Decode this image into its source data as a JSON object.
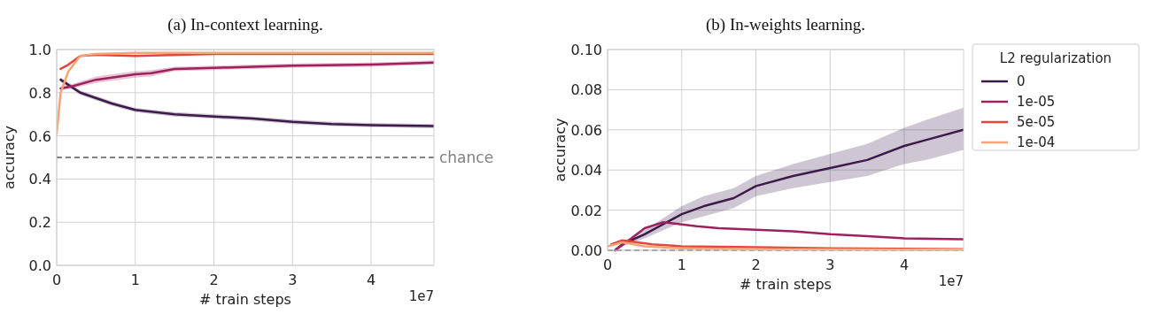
{
  "chart_data": [
    {
      "type": "line",
      "title": "(a) In-context learning.",
      "xlabel": "# train steps",
      "ylabel": "accuracy",
      "annotations": [
        "1e7"
      ],
      "xlim": [
        0,
        4.8
      ],
      "ylim": [
        0,
        1
      ],
      "xticks": [
        0,
        1,
        2,
        3,
        4
      ],
      "yticks": [
        {
          "value": 0,
          "label": "0.0"
        },
        {
          "value": 0.2,
          "label": "0.2"
        },
        {
          "value": 0.4,
          "label": "0.4"
        },
        {
          "value": 0.6,
          "label": "0.6"
        },
        {
          "value": 0.8,
          "label": "0.8"
        },
        {
          "value": 1,
          "label": "1.0"
        }
      ],
      "grid": true,
      "legend": false,
      "line_style": "solid",
      "marker": "none",
      "ref_lines": [
        {
          "axis": "y",
          "value": 0.5,
          "label": "chance",
          "color": "#808080",
          "line_style": "dashed"
        }
      ],
      "series": [
        {
          "color": "#3d1a4a",
          "x": [
            0.05,
            0.3,
            0.7,
            1,
            1.5,
            2,
            2.5,
            3,
            3.5,
            4,
            4.8
          ],
          "values": [
            0.86,
            0.8,
            0.75,
            0.72,
            0.7,
            0.69,
            0.68,
            0.665,
            0.655,
            0.65,
            0.645
          ],
          "lower": [
            0.85,
            0.79,
            0.74,
            0.71,
            0.69,
            0.68,
            0.67,
            0.655,
            0.645,
            0.64,
            0.635
          ],
          "upper": [
            0.87,
            0.81,
            0.76,
            0.73,
            0.71,
            0.7,
            0.69,
            0.675,
            0.665,
            0.66,
            0.655
          ]
        },
        {
          "color": "#a0205e",
          "x": [
            0.05,
            0.2,
            0.5,
            0.7,
            1,
            1.2,
            1.5,
            2,
            2.5,
            3,
            4,
            4.8
          ],
          "values": [
            0.82,
            0.83,
            0.86,
            0.87,
            0.885,
            0.89,
            0.91,
            0.915,
            0.92,
            0.925,
            0.93,
            0.94
          ],
          "lower": [
            0.81,
            0.82,
            0.845,
            0.855,
            0.87,
            0.875,
            0.9,
            0.905,
            0.91,
            0.915,
            0.92,
            0.93
          ],
          "upper": [
            0.83,
            0.84,
            0.875,
            0.885,
            0.9,
            0.905,
            0.92,
            0.925,
            0.93,
            0.935,
            0.94,
            0.95
          ]
        },
        {
          "color": "#e3473c",
          "x": [
            0.05,
            0.15,
            0.3,
            0.5,
            1,
            2,
            3,
            4,
            4.8
          ],
          "values": [
            0.91,
            0.93,
            0.97,
            0.975,
            0.97,
            0.98,
            0.98,
            0.98,
            0.98
          ]
        },
        {
          "color": "#f5a475",
          "x": [
            0,
            0.05,
            0.15,
            0.3,
            0.5,
            1,
            2,
            3,
            4,
            4.8
          ],
          "values": [
            0.61,
            0.8,
            0.9,
            0.97,
            0.98,
            0.985,
            0.985,
            0.985,
            0.985,
            0.985
          ]
        }
      ]
    },
    {
      "type": "line",
      "title": "(b) In-weights learning.",
      "xlabel": "# train steps",
      "ylabel": "accuracy",
      "annotations": [
        "1e7"
      ],
      "xlim": [
        0,
        4.8
      ],
      "ylim": [
        0,
        0.1
      ],
      "legend_title": "L2 regularization",
      "xticks": [
        0,
        1,
        2,
        3,
        4
      ],
      "yticks": [
        {
          "value": 0,
          "label": "0.00"
        },
        {
          "value": 0.02,
          "label": "0.02"
        },
        {
          "value": 0.04,
          "label": "0.04"
        },
        {
          "value": 0.06,
          "label": "0.06"
        },
        {
          "value": 0.08,
          "label": "0.08"
        },
        {
          "value": 0.1,
          "label": "0.10"
        }
      ],
      "grid": true,
      "legend": "right",
      "line_style": "solid",
      "marker": "none",
      "ref_lines": [
        {
          "axis": "y",
          "value": 0,
          "color": "#808080",
          "line_style": "dashed"
        }
      ],
      "series": [
        {
          "name": "0",
          "color": "#3d1a4a",
          "x": [
            0.1,
            0.2,
            0.5,
            0.75,
            1,
            1.3,
            1.7,
            2,
            2.5,
            3,
            3.5,
            4,
            4.3,
            4.8
          ],
          "values": [
            0,
            0.003,
            0.008,
            0.013,
            0.018,
            0.022,
            0.026,
            0.032,
            0.037,
            0.041,
            0.045,
            0.052,
            0.055,
            0.06
          ],
          "lower": [
            0,
            0.002,
            0.006,
            0.01,
            0.014,
            0.017,
            0.021,
            0.027,
            0.031,
            0.034,
            0.037,
            0.043,
            0.045,
            0.05
          ],
          "upper": [
            0,
            0.004,
            0.01,
            0.016,
            0.022,
            0.027,
            0.031,
            0.037,
            0.043,
            0.048,
            0.053,
            0.061,
            0.065,
            0.071
          ]
        },
        {
          "name": "1e-05",
          "color": "#a0205e",
          "x": [
            0.1,
            0.25,
            0.5,
            0.75,
            1.2,
            1.5,
            2.5,
            3,
            3.5,
            4,
            4.8
          ],
          "values": [
            0,
            0.004,
            0.011,
            0.014,
            0.012,
            0.011,
            0.0095,
            0.008,
            0.007,
            0.006,
            0.0055
          ]
        },
        {
          "name": "5e-05",
          "color": "#e3473c",
          "x": [
            0.05,
            0.2,
            0.6,
            1,
            2,
            3,
            4.8
          ],
          "values": [
            0.003,
            0.005,
            0.003,
            0.002,
            0.0015,
            0.001,
            0.0005
          ]
        },
        {
          "name": "1e-04",
          "color": "#f5a475",
          "x": [
            0,
            0.2,
            0.5,
            1,
            2,
            4.8
          ],
          "values": [
            0.002,
            0.004,
            0.002,
            0.001,
            0.0005,
            0.0003
          ]
        }
      ]
    }
  ]
}
